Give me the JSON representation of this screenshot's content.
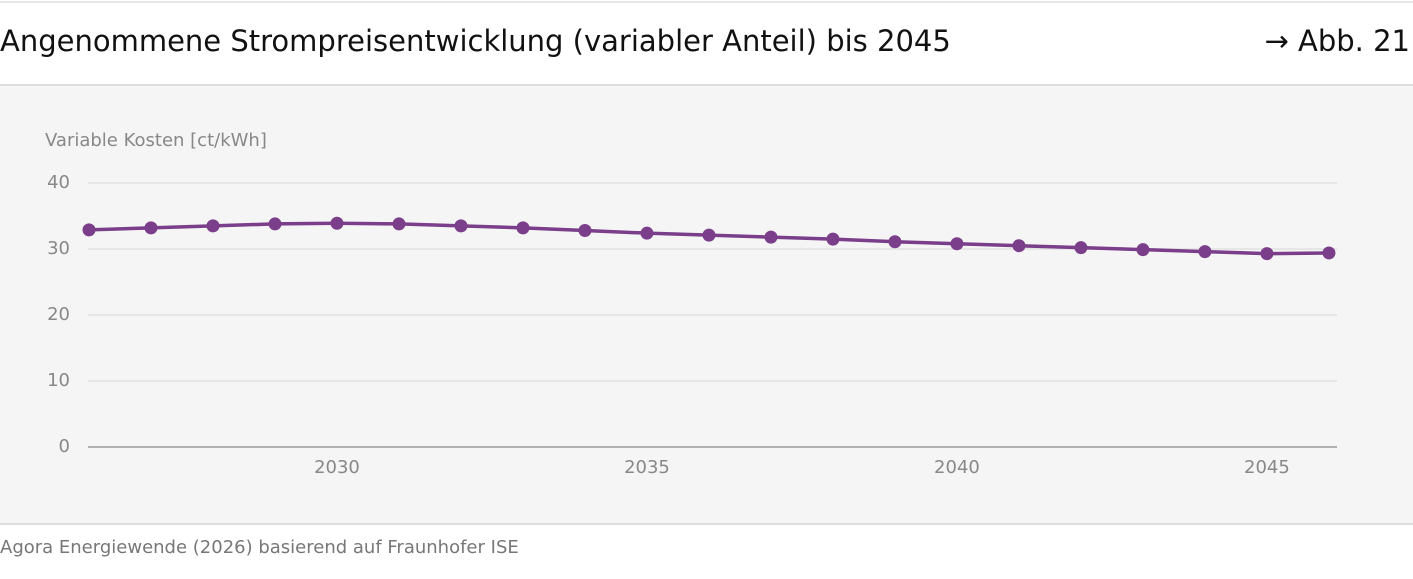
{
  "header": {
    "title": "Angenommene Strompreisentwicklung (variabler Anteil) bis 2045",
    "figure_ref": "→ Abb. 21"
  },
  "chart_data": {
    "type": "line",
    "y_label": "Variable Kosten [ct/kWh]",
    "x": [
      2026,
      2027,
      2028,
      2029,
      2030,
      2031,
      2032,
      2033,
      2034,
      2035,
      2036,
      2037,
      2038,
      2039,
      2040,
      2041,
      2042,
      2043,
      2044,
      2045,
      2046
    ],
    "series": [
      {
        "color": "#7a3e8a",
        "values": [
          32.9,
          33.2,
          33.5,
          33.8,
          33.9,
          33.8,
          33.5,
          33.2,
          32.8,
          32.4,
          32.1,
          31.8,
          31.5,
          31.1,
          30.8,
          30.5,
          30.2,
          29.9,
          29.6,
          29.3,
          29.4
        ]
      }
    ],
    "xlim": [
      2026,
      2046.13
    ],
    "xticks": [
      2030,
      2035,
      2040,
      2045
    ],
    "ylim": [
      0,
      40
    ],
    "yticks": [
      0,
      10,
      20,
      30,
      40
    ],
    "grid": true
  },
  "footer": {
    "source": "Agora Energiewende (2026) basierend auf Fraunhofer ISE"
  }
}
